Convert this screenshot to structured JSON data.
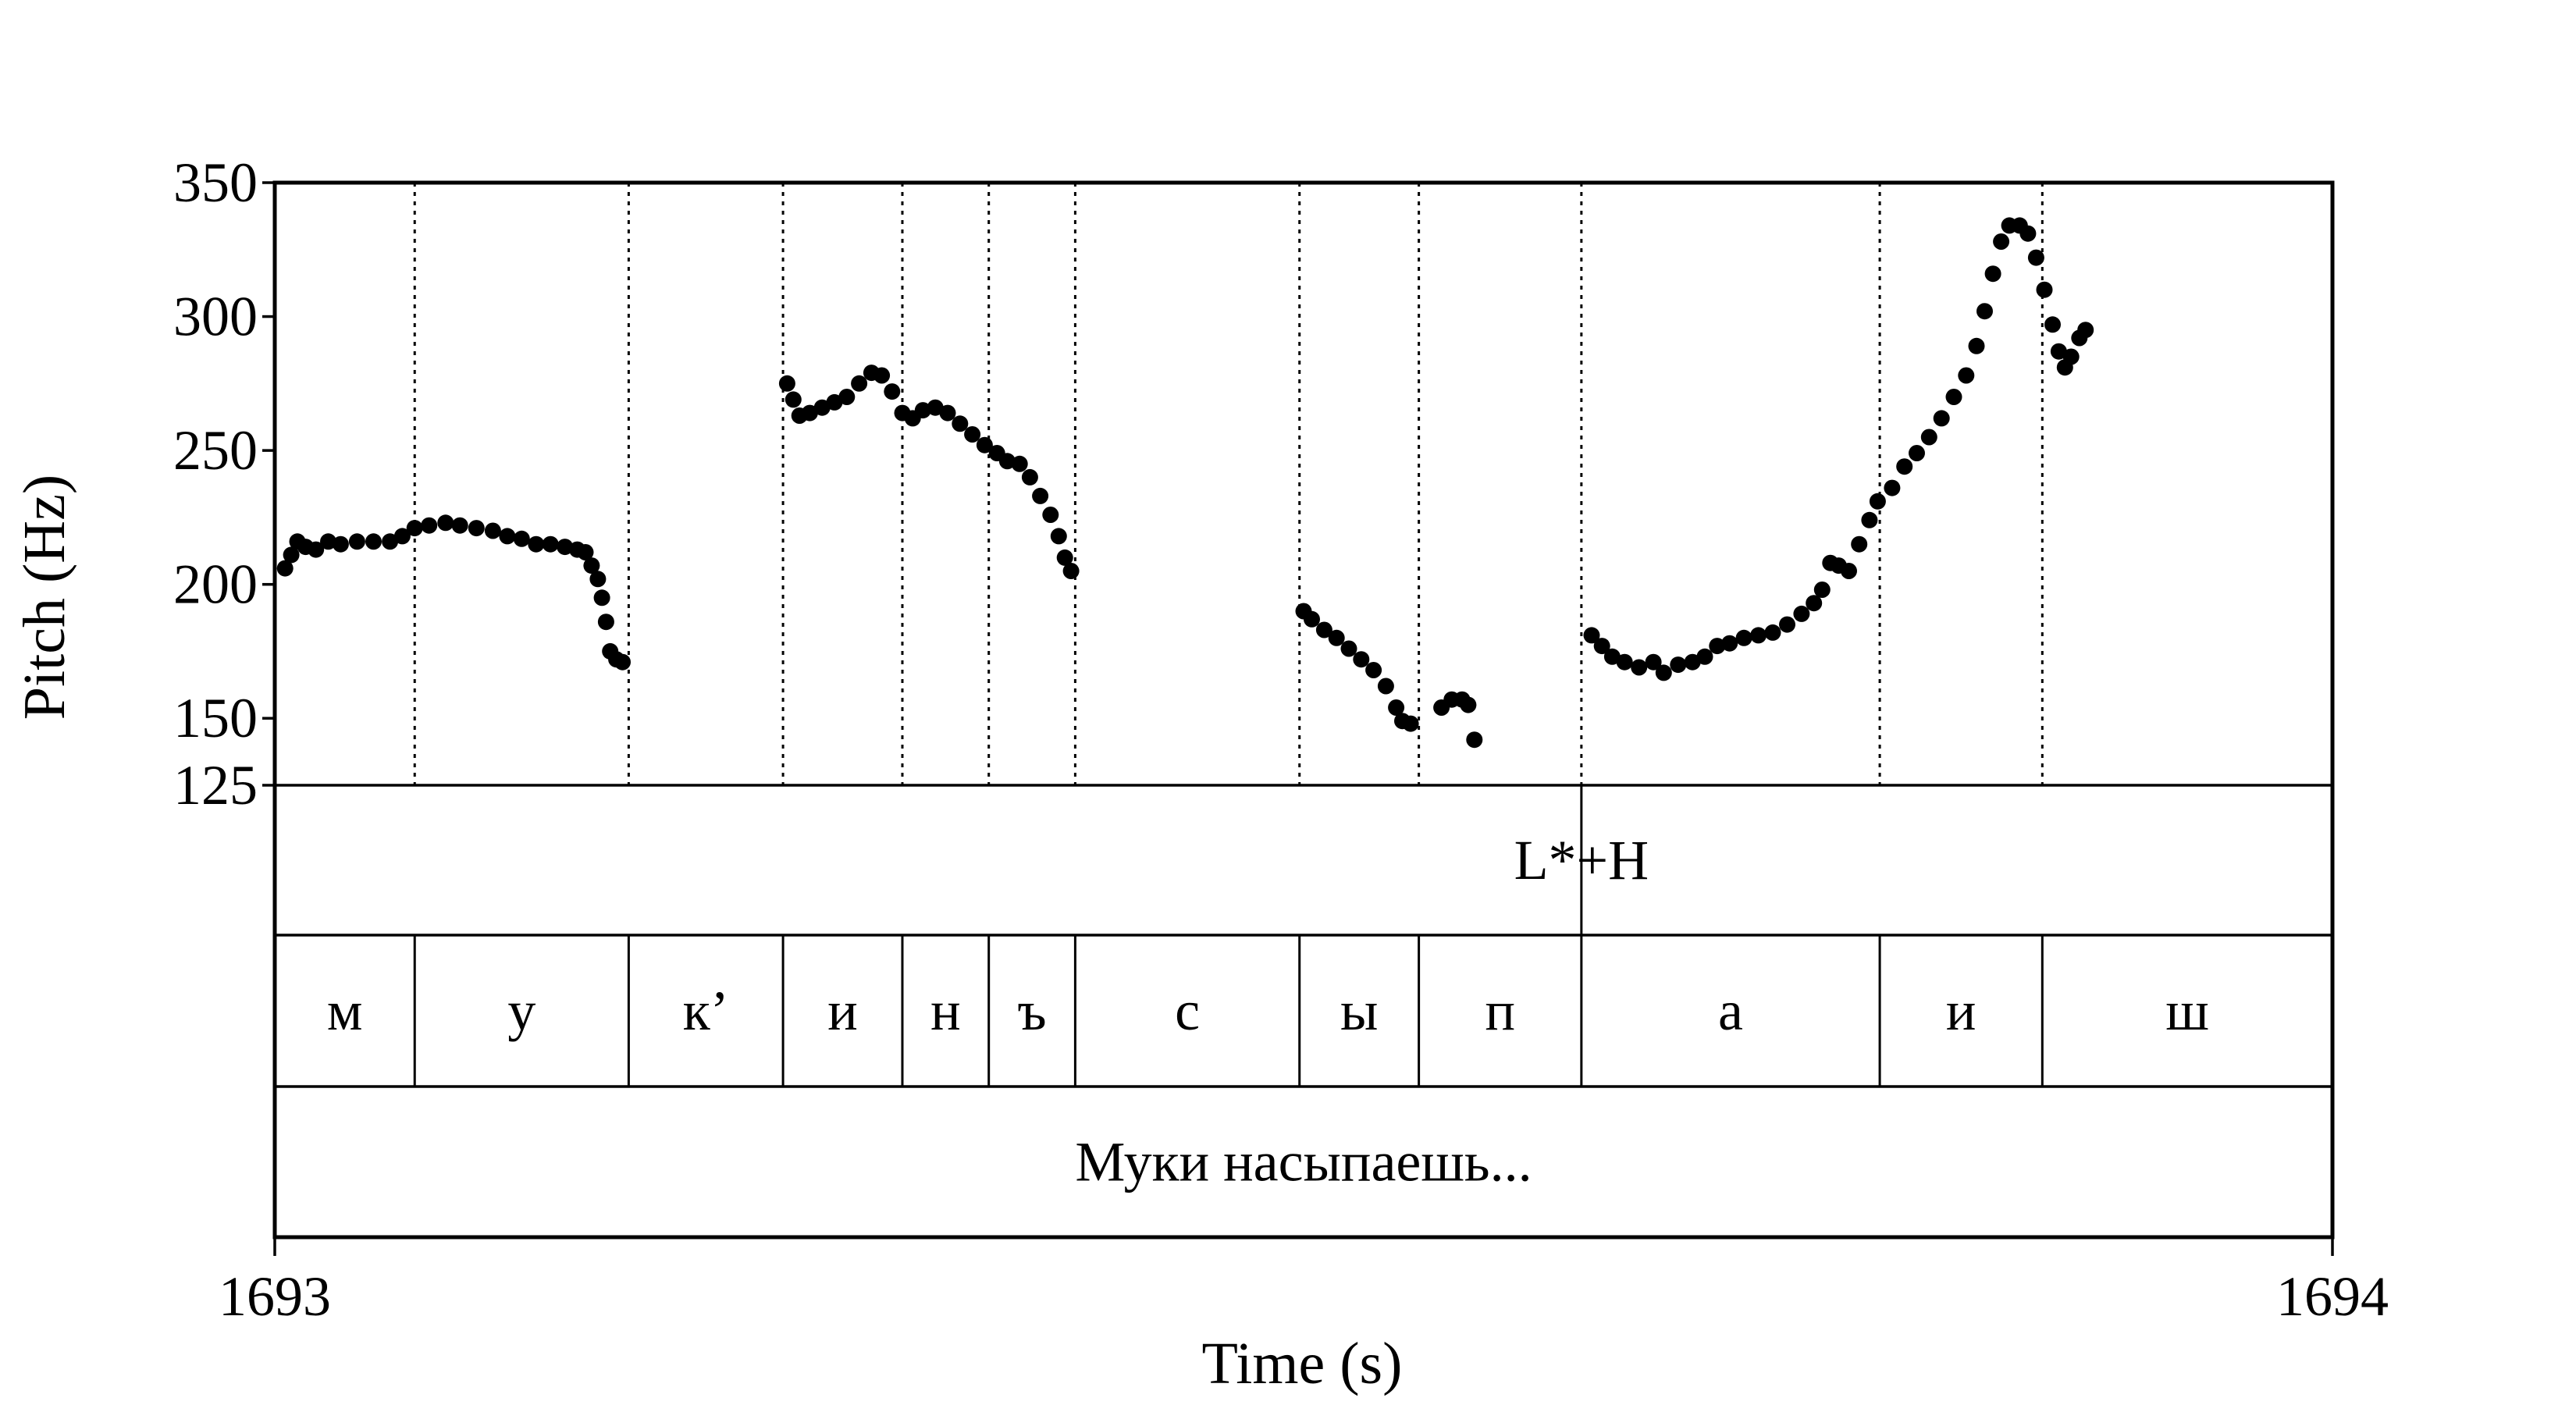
{
  "chart_data": {
    "type": "scatter",
    "xlabel": "Time (s)",
    "ylabel": "Pitch (Hz)",
    "xlim": [
      1693,
      1694
    ],
    "ylim": [
      125,
      350
    ],
    "x_ticks": [
      "1693",
      "1694"
    ],
    "y_ticks": [
      125,
      150,
      200,
      250,
      300,
      350
    ],
    "grid": false,
    "legend": "none",
    "point_color": "#000000",
    "boundaries": [
      1693.068,
      1693.172,
      1693.247,
      1693.305,
      1693.347,
      1693.389,
      1693.498,
      1693.556,
      1693.635,
      1693.78,
      1693.859
    ],
    "tones": [
      {
        "label": "L*+H",
        "time": 1693.635
      }
    ],
    "segments": [
      {
        "label": "м",
        "start": 1693.0,
        "end": 1693.068
      },
      {
        "label": "у",
        "start": 1693.068,
        "end": 1693.172
      },
      {
        "label": "к’",
        "start": 1693.172,
        "end": 1693.247
      },
      {
        "label": "и",
        "start": 1693.247,
        "end": 1693.305
      },
      {
        "label": "н",
        "start": 1693.305,
        "end": 1693.347
      },
      {
        "label": "ъ",
        "start": 1693.347,
        "end": 1693.389
      },
      {
        "label": "с",
        "start": 1693.389,
        "end": 1693.498
      },
      {
        "label": "ы",
        "start": 1693.498,
        "end": 1693.556
      },
      {
        "label": "п",
        "start": 1693.556,
        "end": 1693.635
      },
      {
        "label": "а",
        "start": 1693.635,
        "end": 1693.78
      },
      {
        "label": "и",
        "start": 1693.78,
        "end": 1693.859
      },
      {
        "label": "ш",
        "start": 1693.859,
        "end": 1694.0
      }
    ],
    "sentence": "Муки насыпаешь...",
    "series": [
      {
        "points": [
          [
            1693.005,
            206
          ],
          [
            1693.008,
            211
          ],
          [
            1693.011,
            216
          ],
          [
            1693.015,
            214
          ],
          [
            1693.02,
            213
          ],
          [
            1693.026,
            216
          ],
          [
            1693.032,
            215
          ],
          [
            1693.04,
            216
          ],
          [
            1693.048,
            216
          ],
          [
            1693.056,
            216
          ],
          [
            1693.062,
            218
          ],
          [
            1693.068,
            221
          ],
          [
            1693.075,
            222
          ],
          [
            1693.083,
            223
          ],
          [
            1693.09,
            222
          ],
          [
            1693.098,
            221
          ],
          [
            1693.106,
            220
          ],
          [
            1693.113,
            218
          ],
          [
            1693.12,
            217
          ],
          [
            1693.127,
            215
          ],
          [
            1693.134,
            215
          ],
          [
            1693.141,
            214
          ],
          [
            1693.147,
            213
          ],
          [
            1693.151,
            212
          ],
          [
            1693.154,
            207
          ],
          [
            1693.157,
            202
          ],
          [
            1693.159,
            195
          ],
          [
            1693.161,
            186
          ],
          [
            1693.163,
            175
          ],
          [
            1693.166,
            172
          ],
          [
            1693.169,
            171
          ],
          [
            1693.249,
            275
          ],
          [
            1693.252,
            269
          ],
          [
            1693.255,
            263
          ],
          [
            1693.26,
            264
          ],
          [
            1693.266,
            266
          ],
          [
            1693.272,
            268
          ],
          [
            1693.278,
            270
          ],
          [
            1693.284,
            275
          ],
          [
            1693.29,
            279
          ],
          [
            1693.295,
            278
          ],
          [
            1693.3,
            272
          ],
          [
            1693.305,
            264
          ],
          [
            1693.31,
            262
          ],
          [
            1693.315,
            265
          ],
          [
            1693.321,
            266
          ],
          [
            1693.327,
            264
          ],
          [
            1693.333,
            260
          ],
          [
            1693.339,
            256
          ],
          [
            1693.345,
            252
          ],
          [
            1693.351,
            249
          ],
          [
            1693.356,
            246
          ],
          [
            1693.362,
            245
          ],
          [
            1693.367,
            240
          ],
          [
            1693.372,
            233
          ],
          [
            1693.377,
            226
          ],
          [
            1693.381,
            218
          ],
          [
            1693.384,
            210
          ],
          [
            1693.387,
            205
          ],
          [
            1693.5,
            190
          ],
          [
            1693.504,
            187
          ],
          [
            1693.51,
            183
          ],
          [
            1693.516,
            180
          ],
          [
            1693.522,
            176
          ],
          [
            1693.528,
            172
          ],
          [
            1693.534,
            168
          ],
          [
            1693.54,
            162
          ],
          [
            1693.545,
            154
          ],
          [
            1693.548,
            149
          ],
          [
            1693.552,
            148
          ],
          [
            1693.567,
            154
          ],
          [
            1693.572,
            157
          ],
          [
            1693.577,
            157
          ],
          [
            1693.58,
            155
          ],
          [
            1693.583,
            142
          ],
          [
            1693.64,
            181
          ],
          [
            1693.645,
            177
          ],
          [
            1693.65,
            173
          ],
          [
            1693.656,
            171
          ],
          [
            1693.663,
            169
          ],
          [
            1693.67,
            171
          ],
          [
            1693.675,
            167
          ],
          [
            1693.682,
            170
          ],
          [
            1693.689,
            171
          ],
          [
            1693.695,
            173
          ],
          [
            1693.701,
            177
          ],
          [
            1693.707,
            178
          ],
          [
            1693.714,
            180
          ],
          [
            1693.721,
            181
          ],
          [
            1693.728,
            182
          ],
          [
            1693.735,
            185
          ],
          [
            1693.742,
            189
          ],
          [
            1693.748,
            193
          ],
          [
            1693.752,
            198
          ],
          [
            1693.756,
            208
          ],
          [
            1693.76,
            207
          ],
          [
            1693.765,
            205
          ],
          [
            1693.77,
            215
          ],
          [
            1693.775,
            224
          ],
          [
            1693.779,
            231
          ],
          [
            1693.786,
            236
          ],
          [
            1693.792,
            244
          ],
          [
            1693.798,
            249
          ],
          [
            1693.804,
            255
          ],
          [
            1693.81,
            262
          ],
          [
            1693.816,
            270
          ],
          [
            1693.822,
            278
          ],
          [
            1693.827,
            289
          ],
          [
            1693.831,
            302
          ],
          [
            1693.835,
            316
          ],
          [
            1693.839,
            328
          ],
          [
            1693.843,
            334
          ],
          [
            1693.848,
            334
          ],
          [
            1693.852,
            331
          ],
          [
            1693.856,
            322
          ],
          [
            1693.86,
            310
          ],
          [
            1693.864,
            297
          ],
          [
            1693.867,
            287
          ],
          [
            1693.87,
            281
          ],
          [
            1693.873,
            285
          ],
          [
            1693.877,
            292
          ],
          [
            1693.88,
            295
          ]
        ]
      }
    ]
  }
}
